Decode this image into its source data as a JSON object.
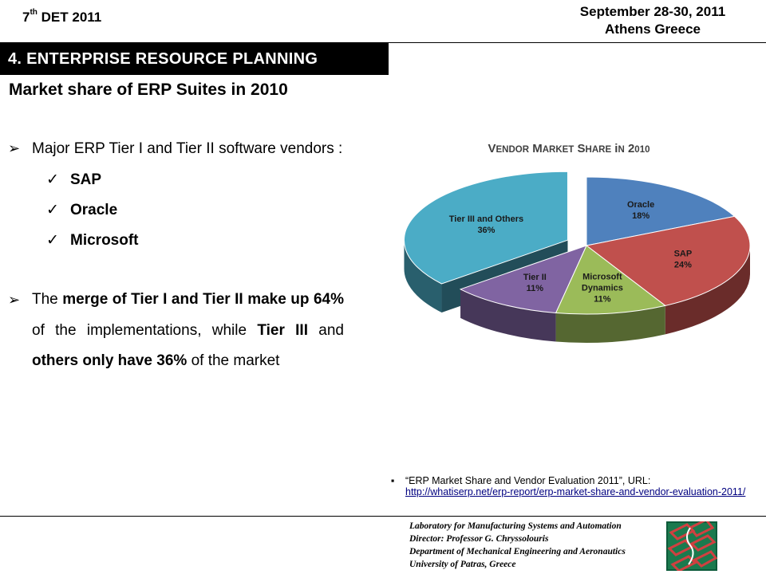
{
  "header": {
    "event_prefix": "7",
    "event_sup": "th",
    "event_suffix": " DET 2011",
    "date": "September 28-30, 2011",
    "location": "Athens Greece"
  },
  "section_title": "4. ENTERPRISE RESOURCE PLANNING",
  "subtitle": "Market share of ERP Suites in 2010",
  "bullets": {
    "first": "Major ERP Tier I and Tier II software vendors :",
    "vendors": [
      "SAP",
      "Oracle",
      "Microsoft"
    ],
    "second_parts": {
      "p1": "The ",
      "p2": "merge of Tier I and Tier II make up 64%",
      "p3": " of the implementations, while ",
      "p4": "Tier III",
      "p5": " and ",
      "p6": "others only have 36%",
      "p7": " of the market"
    }
  },
  "chart_data": {
    "type": "pie",
    "title": "Vendor Market Share in 2010",
    "slices": [
      {
        "label": "Oracle",
        "value": 18,
        "pct_label": "18%",
        "color": "#4f81bd"
      },
      {
        "label": "SAP",
        "value": 24,
        "pct_label": "24%",
        "color": "#c0504d"
      },
      {
        "label": "Microsoft Dynamics",
        "value": 11,
        "pct_label": "11%",
        "color": "#9bbb59"
      },
      {
        "label": "Tier II",
        "value": 11,
        "pct_label": "11%",
        "color": "#8064a2"
      },
      {
        "label": "Tier III and Others",
        "value": 36,
        "pct_label": "36%",
        "color": "#4bacc6",
        "exploded": true
      }
    ]
  },
  "reference": {
    "bullet": "▪",
    "text": "“ERP Market Share and Vendor Evaluation 2011”, URL:",
    "url": "http://whatiserp.net/erp-report/erp-market-share-and-vendor-evaluation-2011/"
  },
  "footer": {
    "lines": [
      "Laboratory for Manufacturing Systems and Automation",
      "Director: Professor G. Chryssolouris",
      "Department of Mechanical Engineering and Aeronautics",
      "University of Patras, Greece"
    ]
  }
}
